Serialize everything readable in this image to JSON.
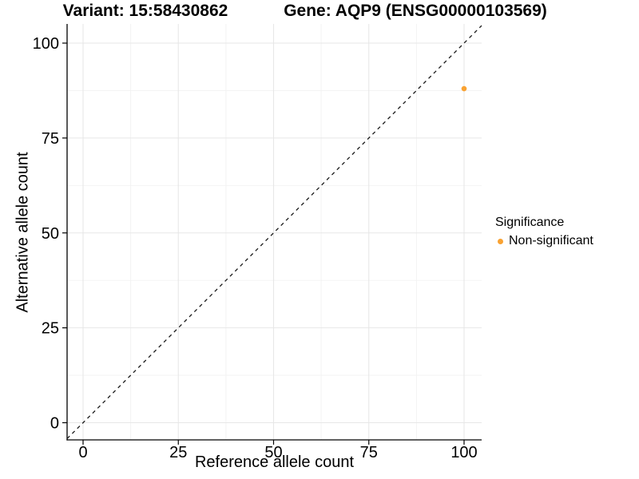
{
  "chart_data": {
    "type": "scatter",
    "titles": {
      "variant": "Variant: 15:58430862",
      "gene": "Gene: AQP9 (ENSG00000103569)"
    },
    "xlabel": "Reference allele count",
    "ylabel": "Alternative allele count",
    "xticks": [
      0,
      25,
      50,
      75,
      100
    ],
    "yticks": [
      0,
      25,
      50,
      75,
      100
    ],
    "minor_gridlines": [
      12.5,
      37.5,
      62.5,
      87.5
    ],
    "xlim": [
      -4.2,
      104.6
    ],
    "ylim": [
      -4.5,
      105.2
    ],
    "grid": "major and minor, light gray, white panel",
    "axes_shown": [
      "left",
      "bottom"
    ],
    "reference_line": {
      "type": "identity y=x",
      "style": "dashed",
      "color": "#1a1a1a"
    },
    "series": [
      {
        "name": "Non-significant",
        "color": "#F9A232",
        "points": [
          {
            "x": 100,
            "y": 88
          }
        ]
      }
    ],
    "legend": {
      "title": "Significance",
      "position": "right",
      "items": [
        {
          "label": "Non-significant",
          "color": "#F9A232"
        }
      ]
    }
  },
  "colors": {
    "background": "#FFFFFF",
    "grid_major": "#E7E7E7",
    "grid_minor": "#F2F2F2",
    "axis": "#000000",
    "text": "#000000"
  }
}
